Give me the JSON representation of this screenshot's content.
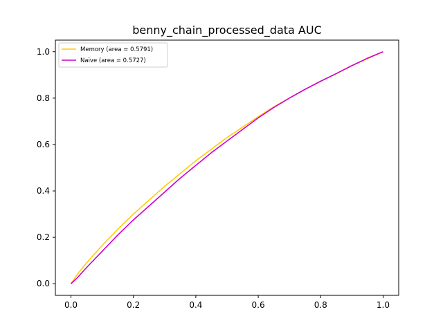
{
  "chart_data": {
    "type": "line",
    "title": "benny_chain_processed_data AUC",
    "xlabel": "",
    "ylabel": "",
    "xlim": [
      -0.05,
      1.05
    ],
    "ylim": [
      -0.05,
      1.05
    ],
    "x_ticks": [
      "0.0",
      "0.2",
      "0.4",
      "0.6",
      "0.8",
      "1.0"
    ],
    "y_ticks": [
      "0.0",
      "0.2",
      "0.4",
      "0.6",
      "0.8",
      "1.0"
    ],
    "grid": false,
    "legend_position": "top-left",
    "series": [
      {
        "name": "Memory (area = 0.5791)",
        "color": "#FFCC00",
        "x": [
          0.0,
          0.02,
          0.05,
          0.1,
          0.15,
          0.2,
          0.25,
          0.3,
          0.35,
          0.4,
          0.45,
          0.5,
          0.55,
          0.6,
          0.65,
          0.7,
          0.75,
          0.8,
          0.85,
          0.9,
          0.95,
          1.0
        ],
        "y": [
          0.0,
          0.04,
          0.09,
          0.165,
          0.235,
          0.3,
          0.36,
          0.42,
          0.475,
          0.53,
          0.58,
          0.63,
          0.675,
          0.72,
          0.763,
          0.8,
          0.838,
          0.872,
          0.905,
          0.94,
          0.97,
          1.0
        ]
      },
      {
        "name": "Naive (area = 0.5727)",
        "color": "#CC00CC",
        "x": [
          0.0,
          0.02,
          0.05,
          0.1,
          0.15,
          0.2,
          0.25,
          0.3,
          0.35,
          0.4,
          0.45,
          0.5,
          0.55,
          0.6,
          0.65,
          0.7,
          0.75,
          0.8,
          0.85,
          0.9,
          0.95,
          1.0
        ],
        "y": [
          0.0,
          0.025,
          0.07,
          0.14,
          0.21,
          0.275,
          0.335,
          0.395,
          0.455,
          0.51,
          0.565,
          0.615,
          0.665,
          0.715,
          0.76,
          0.8,
          0.838,
          0.873,
          0.906,
          0.94,
          0.972,
          1.0
        ]
      }
    ]
  }
}
